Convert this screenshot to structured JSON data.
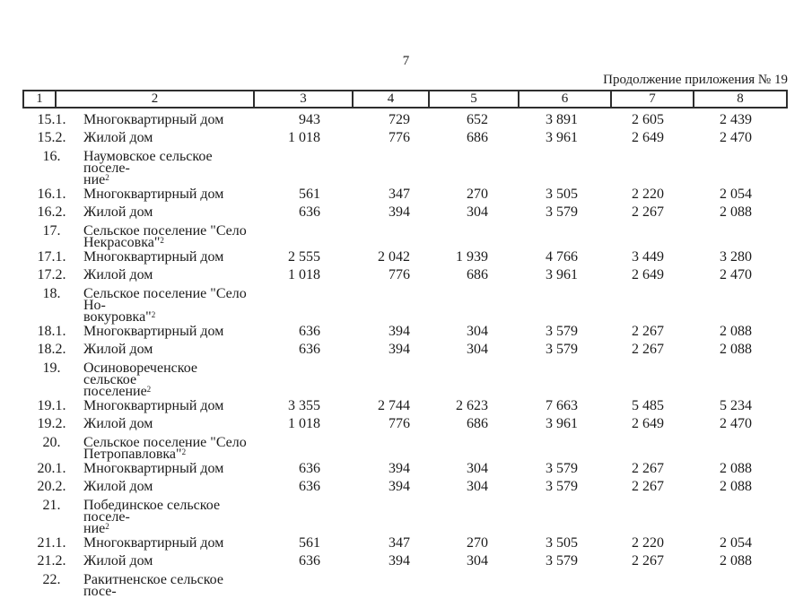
{
  "page": {
    "number": "7",
    "continuation": "Продолжение приложения № 19"
  },
  "table": {
    "column_headers": [
      "1",
      "2",
      "3",
      "4",
      "5",
      "6",
      "7",
      "8"
    ],
    "rows": [
      {
        "type": "data",
        "num": "15.1.",
        "label": "Многоквартирный дом",
        "values": [
          "943",
          "729",
          "652",
          "3 891",
          "2 605",
          "2 439"
        ]
      },
      {
        "type": "data",
        "num": "15.2.",
        "label": "Жилой дом",
        "values": [
          "1 018",
          "776",
          "686",
          "3 961",
          "2 649",
          "2 470"
        ]
      },
      {
        "type": "section",
        "num": "16.",
        "line1": "Наумовское сельское поселе-",
        "line2": "ние",
        "sup": "2"
      },
      {
        "type": "data",
        "num": "16.1.",
        "label": "Многоквартирный дом",
        "values": [
          "561",
          "347",
          "270",
          "3 505",
          "2 220",
          "2 054"
        ]
      },
      {
        "type": "data",
        "num": "16.2.",
        "label": "Жилой дом",
        "values": [
          "636",
          "394",
          "304",
          "3 579",
          "2 267",
          "2 088"
        ]
      },
      {
        "type": "section",
        "num": "17.",
        "line1": "Сельское поселение \"Село",
        "line2": "Некрасовка\"",
        "sup": "2"
      },
      {
        "type": "data",
        "num": "17.1.",
        "label": "Многоквартирный дом",
        "values": [
          "2 555",
          "2 042",
          "1 939",
          "4 766",
          "3 449",
          "3 280"
        ]
      },
      {
        "type": "data",
        "num": "17.2.",
        "label": "Жилой дом",
        "values": [
          "1 018",
          "776",
          "686",
          "3 961",
          "2 649",
          "2 470"
        ]
      },
      {
        "type": "section",
        "num": "18.",
        "line1": "Сельское поселение \"Село Но-",
        "line2": "вокуровка\"",
        "sup": "2"
      },
      {
        "type": "data",
        "num": "18.1.",
        "label": "Многоквартирный дом",
        "values": [
          "636",
          "394",
          "304",
          "3 579",
          "2 267",
          "2 088"
        ]
      },
      {
        "type": "data",
        "num": "18.2.",
        "label": "Жилой дом",
        "values": [
          "636",
          "394",
          "304",
          "3 579",
          "2 267",
          "2 088"
        ]
      },
      {
        "type": "section",
        "num": "19.",
        "line1": "Осиновореченское сельское",
        "line2": "поселение",
        "sup": "2"
      },
      {
        "type": "data",
        "num": "19.1.",
        "label": "Многоквартирный дом",
        "values": [
          "3 355",
          "2 744",
          "2 623",
          "7 663",
          "5 485",
          "5 234"
        ]
      },
      {
        "type": "data",
        "num": "19.2.",
        "label": "Жилой дом",
        "values": [
          "1 018",
          "776",
          "686",
          "3 961",
          "2 649",
          "2 470"
        ]
      },
      {
        "type": "section",
        "num": "20.",
        "line1": "Сельское поселение \"Село",
        "line2": "Петропавловка\"",
        "sup": "2"
      },
      {
        "type": "data",
        "num": "20.1.",
        "label": "Многоквартирный дом",
        "values": [
          "636",
          "394",
          "304",
          "3 579",
          "2 267",
          "2 088"
        ]
      },
      {
        "type": "data",
        "num": "20.2.",
        "label": "Жилой дом",
        "values": [
          "636",
          "394",
          "304",
          "3 579",
          "2 267",
          "2 088"
        ]
      },
      {
        "type": "section",
        "num": "21.",
        "line1": "Побединское сельское поселе-",
        "line2": "ние",
        "sup": "2"
      },
      {
        "type": "data",
        "num": "21.1.",
        "label": "Многоквартирный дом",
        "values": [
          "561",
          "347",
          "270",
          "3 505",
          "2 220",
          "2 054"
        ]
      },
      {
        "type": "data",
        "num": "21.2.",
        "label": "Жилой дом",
        "values": [
          "636",
          "394",
          "304",
          "3 579",
          "2 267",
          "2 088"
        ]
      },
      {
        "type": "section",
        "num": "22.",
        "line1": "Ракитненское сельское посе-",
        "line2": "",
        "sup": ""
      }
    ]
  }
}
